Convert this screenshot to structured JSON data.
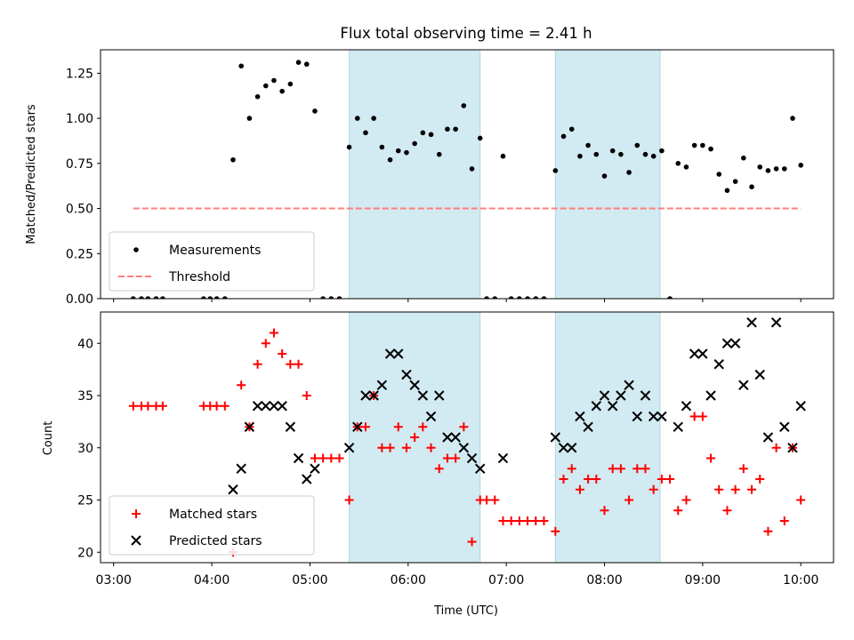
{
  "chart_data": [
    {
      "type": "scatter",
      "title": "Flux total observing time = 2.41 h",
      "xlabel": "",
      "ylabel": "Matched/Predicted stars",
      "xlim": [
        "02:52",
        "10:20"
      ],
      "ylim": [
        0,
        1.38
      ],
      "x_ticks": [
        "03:00",
        "04:00",
        "05:00",
        "06:00",
        "07:00",
        "08:00",
        "09:00",
        "10:00"
      ],
      "y_ticks": [
        "0.00",
        "0.25",
        "0.50",
        "0.75",
        "1.00",
        "1.25"
      ],
      "shaded_intervals": [
        [
          "05:24",
          "06:44"
        ],
        [
          "07:30",
          "08:34"
        ]
      ],
      "shade_color": "#add8e6",
      "legend_position": "lower left",
      "series": [
        {
          "name": "Measurements",
          "marker": "dot",
          "color": "#000000",
          "points": [
            [
              "03:12",
              0.0
            ],
            [
              "03:17",
              0.0
            ],
            [
              "03:21",
              0.0
            ],
            [
              "03:26",
              0.0
            ],
            [
              "03:30",
              0.0
            ],
            [
              "03:55",
              0.0
            ],
            [
              "03:59",
              0.0
            ],
            [
              "04:03",
              0.0
            ],
            [
              "04:08",
              0.0
            ],
            [
              "04:13",
              0.77
            ],
            [
              "04:18",
              1.29
            ],
            [
              "04:23",
              1.0
            ],
            [
              "04:28",
              1.12
            ],
            [
              "04:33",
              1.18
            ],
            [
              "04:38",
              1.21
            ],
            [
              "04:43",
              1.15
            ],
            [
              "04:48",
              1.19
            ],
            [
              "04:53",
              1.31
            ],
            [
              "04:58",
              1.3
            ],
            [
              "05:03",
              1.04
            ],
            [
              "05:08",
              0.0
            ],
            [
              "05:13",
              0.0
            ],
            [
              "05:18",
              0.0
            ],
            [
              "05:24",
              0.84
            ],
            [
              "05:29",
              1.0
            ],
            [
              "05:34",
              0.92
            ],
            [
              "05:39",
              1.0
            ],
            [
              "05:44",
              0.84
            ],
            [
              "05:49",
              0.77
            ],
            [
              "05:54",
              0.82
            ],
            [
              "05:59",
              0.81
            ],
            [
              "06:04",
              0.86
            ],
            [
              "06:09",
              0.92
            ],
            [
              "06:14",
              0.91
            ],
            [
              "06:19",
              0.8
            ],
            [
              "06:24",
              0.94
            ],
            [
              "06:29",
              0.94
            ],
            [
              "06:34",
              1.07
            ],
            [
              "06:39",
              0.72
            ],
            [
              "06:44",
              0.89
            ],
            [
              "06:48",
              0.0
            ],
            [
              "06:53",
              0.0
            ],
            [
              "06:58",
              0.79
            ],
            [
              "07:03",
              0.0
            ],
            [
              "07:08",
              0.0
            ],
            [
              "07:13",
              0.0
            ],
            [
              "07:18",
              0.0
            ],
            [
              "07:23",
              0.0
            ],
            [
              "07:30",
              0.71
            ],
            [
              "07:35",
              0.9
            ],
            [
              "07:40",
              0.94
            ],
            [
              "07:45",
              0.79
            ],
            [
              "07:50",
              0.85
            ],
            [
              "07:55",
              0.8
            ],
            [
              "08:00",
              0.68
            ],
            [
              "08:05",
              0.82
            ],
            [
              "08:10",
              0.8
            ],
            [
              "08:15",
              0.7
            ],
            [
              "08:20",
              0.85
            ],
            [
              "08:25",
              0.8
            ],
            [
              "08:30",
              0.79
            ],
            [
              "08:35",
              0.82
            ],
            [
              "08:40",
              0.0
            ],
            [
              "08:45",
              0.75
            ],
            [
              "08:50",
              0.73
            ],
            [
              "08:55",
              0.85
            ],
            [
              "09:00",
              0.85
            ],
            [
              "09:05",
              0.83
            ],
            [
              "09:10",
              0.69
            ],
            [
              "09:15",
              0.6
            ],
            [
              "09:20",
              0.65
            ],
            [
              "09:25",
              0.78
            ],
            [
              "09:30",
              0.62
            ],
            [
              "09:35",
              0.73
            ],
            [
              "09:40",
              0.71
            ],
            [
              "09:45",
              0.72
            ],
            [
              "09:50",
              0.72
            ],
            [
              "09:55",
              1.0
            ],
            [
              "10:00",
              0.74
            ]
          ]
        },
        {
          "name": "Threshold",
          "style": "dashed",
          "color": "#ff7f7f",
          "points": [
            [
              "03:12",
              0.5
            ],
            [
              "10:00",
              0.5
            ]
          ]
        }
      ]
    },
    {
      "type": "scatter",
      "title": "",
      "xlabel": "Time (UTC)",
      "ylabel": "Count",
      "xlim": [
        "02:52",
        "10:20"
      ],
      "ylim": [
        19,
        43
      ],
      "x_ticks": [
        "03:00",
        "04:00",
        "05:00",
        "06:00",
        "07:00",
        "08:00",
        "09:00",
        "10:00"
      ],
      "y_ticks": [
        "20",
        "25",
        "30",
        "35",
        "40"
      ],
      "shaded_intervals": [
        [
          "05:24",
          "06:44"
        ],
        [
          "07:30",
          "08:34"
        ]
      ],
      "shade_color": "#add8e6",
      "legend_position": "lower left",
      "series": [
        {
          "name": "Matched stars",
          "marker": "plus",
          "color": "#ff0000",
          "points": [
            [
              "03:12",
              34
            ],
            [
              "03:17",
              34
            ],
            [
              "03:21",
              34
            ],
            [
              "03:26",
              34
            ],
            [
              "03:30",
              34
            ],
            [
              "03:55",
              34
            ],
            [
              "03:59",
              34
            ],
            [
              "04:03",
              34
            ],
            [
              "04:08",
              34
            ],
            [
              "04:13",
              20
            ],
            [
              "04:18",
              36
            ],
            [
              "04:23",
              32
            ],
            [
              "04:28",
              38
            ],
            [
              "04:33",
              40
            ],
            [
              "04:38",
              41
            ],
            [
              "04:43",
              39
            ],
            [
              "04:48",
              38
            ],
            [
              "04:53",
              38
            ],
            [
              "04:58",
              35
            ],
            [
              "05:03",
              29
            ],
            [
              "05:08",
              29
            ],
            [
              "05:13",
              29
            ],
            [
              "05:18",
              29
            ],
            [
              "05:24",
              25
            ],
            [
              "05:29",
              32
            ],
            [
              "05:34",
              32
            ],
            [
              "05:39",
              35
            ],
            [
              "05:44",
              30
            ],
            [
              "05:49",
              30
            ],
            [
              "05:54",
              32
            ],
            [
              "05:59",
              30
            ],
            [
              "06:04",
              31
            ],
            [
              "06:09",
              32
            ],
            [
              "06:14",
              30
            ],
            [
              "06:19",
              28
            ],
            [
              "06:24",
              29
            ],
            [
              "06:29",
              29
            ],
            [
              "06:34",
              32
            ],
            [
              "06:39",
              21
            ],
            [
              "06:44",
              25
            ],
            [
              "06:48",
              25
            ],
            [
              "06:53",
              25
            ],
            [
              "06:58",
              23
            ],
            [
              "07:03",
              23
            ],
            [
              "07:08",
              23
            ],
            [
              "07:13",
              23
            ],
            [
              "07:18",
              23
            ],
            [
              "07:23",
              23
            ],
            [
              "07:30",
              22
            ],
            [
              "07:35",
              27
            ],
            [
              "07:40",
              28
            ],
            [
              "07:45",
              26
            ],
            [
              "07:50",
              27
            ],
            [
              "07:55",
              27
            ],
            [
              "08:00",
              24
            ],
            [
              "08:05",
              28
            ],
            [
              "08:10",
              28
            ],
            [
              "08:15",
              25
            ],
            [
              "08:20",
              28
            ],
            [
              "08:25",
              28
            ],
            [
              "08:30",
              26
            ],
            [
              "08:35",
              27
            ],
            [
              "08:40",
              27
            ],
            [
              "08:45",
              24
            ],
            [
              "08:50",
              25
            ],
            [
              "08:55",
              33
            ],
            [
              "09:00",
              33
            ],
            [
              "09:05",
              29
            ],
            [
              "09:10",
              26
            ],
            [
              "09:15",
              24
            ],
            [
              "09:20",
              26
            ],
            [
              "09:25",
              28
            ],
            [
              "09:30",
              26
            ],
            [
              "09:35",
              27
            ],
            [
              "09:40",
              22
            ],
            [
              "09:45",
              30
            ],
            [
              "09:50",
              23
            ],
            [
              "09:55",
              30
            ],
            [
              "10:00",
              25
            ]
          ]
        },
        {
          "name": "Predicted stars",
          "marker": "x",
          "color": "#000000",
          "points": [
            [
              "04:13",
              26
            ],
            [
              "04:18",
              28
            ],
            [
              "04:23",
              32
            ],
            [
              "04:28",
              34
            ],
            [
              "04:33",
              34
            ],
            [
              "04:38",
              34
            ],
            [
              "04:43",
              34
            ],
            [
              "04:48",
              32
            ],
            [
              "04:53",
              29
            ],
            [
              "04:58",
              27
            ],
            [
              "05:03",
              28
            ],
            [
              "05:24",
              30
            ],
            [
              "05:29",
              32
            ],
            [
              "05:34",
              35
            ],
            [
              "05:39",
              35
            ],
            [
              "05:44",
              36
            ],
            [
              "05:49",
              39
            ],
            [
              "05:54",
              39
            ],
            [
              "05:59",
              37
            ],
            [
              "06:04",
              36
            ],
            [
              "06:09",
              35
            ],
            [
              "06:14",
              33
            ],
            [
              "06:19",
              35
            ],
            [
              "06:24",
              31
            ],
            [
              "06:29",
              31
            ],
            [
              "06:34",
              30
            ],
            [
              "06:39",
              29
            ],
            [
              "06:44",
              28
            ],
            [
              "06:58",
              29
            ],
            [
              "07:30",
              31
            ],
            [
              "07:35",
              30
            ],
            [
              "07:40",
              30
            ],
            [
              "07:45",
              33
            ],
            [
              "07:50",
              32
            ],
            [
              "07:55",
              34
            ],
            [
              "08:00",
              35
            ],
            [
              "08:05",
              34
            ],
            [
              "08:10",
              35
            ],
            [
              "08:15",
              36
            ],
            [
              "08:20",
              33
            ],
            [
              "08:25",
              35
            ],
            [
              "08:30",
              33
            ],
            [
              "08:35",
              33
            ],
            [
              "08:45",
              32
            ],
            [
              "08:50",
              34
            ],
            [
              "08:55",
              39
            ],
            [
              "09:00",
              39
            ],
            [
              "09:05",
              35
            ],
            [
              "09:10",
              38
            ],
            [
              "09:15",
              40
            ],
            [
              "09:20",
              40
            ],
            [
              "09:25",
              36
            ],
            [
              "09:30",
              42
            ],
            [
              "09:35",
              37
            ],
            [
              "09:40",
              31
            ],
            [
              "09:45",
              42
            ],
            [
              "09:50",
              32
            ],
            [
              "09:55",
              30
            ],
            [
              "10:00",
              34
            ]
          ]
        }
      ]
    }
  ]
}
